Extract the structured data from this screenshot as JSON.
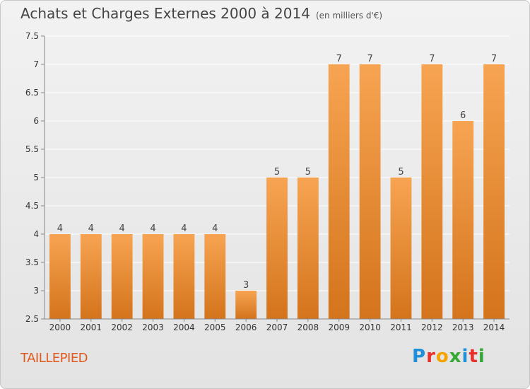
{
  "header": {
    "title": "Achats et Charges Externes 2000 à 2014",
    "unit": "(en milliers d'€)"
  },
  "footer": {
    "commune": "TAILLEPIED",
    "logo_letters": [
      {
        "ch": "P",
        "color": "#1f8fd8"
      },
      {
        "ch": "r",
        "color": "#e8312a"
      },
      {
        "ch": "o",
        "color": "#f5a300"
      },
      {
        "ch": "x",
        "color": "#35a935"
      },
      {
        "ch": "i",
        "color": "#1f8fd8"
      },
      {
        "ch": "t",
        "color": "#e8312a"
      },
      {
        "ch": "i",
        "color": "#35a935"
      }
    ]
  },
  "chart_data": {
    "type": "bar",
    "categories": [
      "2000",
      "2001",
      "2002",
      "2003",
      "2004",
      "2005",
      "2006",
      "2007",
      "2008",
      "2009",
      "2010",
      "2011",
      "2012",
      "2013",
      "2014"
    ],
    "values": [
      4,
      4,
      4,
      4,
      4,
      4,
      3,
      5,
      5,
      7,
      7,
      5,
      7,
      6,
      7
    ],
    "data_labels": [
      "4",
      "4",
      "4",
      "4",
      "4",
      "4",
      "3",
      "5",
      "5",
      "7",
      "7",
      "5",
      "7",
      "6",
      "7"
    ],
    "ylim": [
      2.5,
      7.5
    ],
    "yticks": [
      2.5,
      3,
      3.5,
      4,
      4.5,
      5,
      5.5,
      6,
      6.5,
      7,
      7.5
    ],
    "ytick_labels": [
      "2.5",
      "3",
      "3.5",
      "4",
      "4.5",
      "5",
      "5.5",
      "6",
      "6.5",
      "7",
      "7.5"
    ],
    "grid": true,
    "colors": {
      "bar_top": "#f7a452",
      "bar_bottom": "#d4741c",
      "grid": "#ffffff",
      "axis": "#888888"
    }
  }
}
